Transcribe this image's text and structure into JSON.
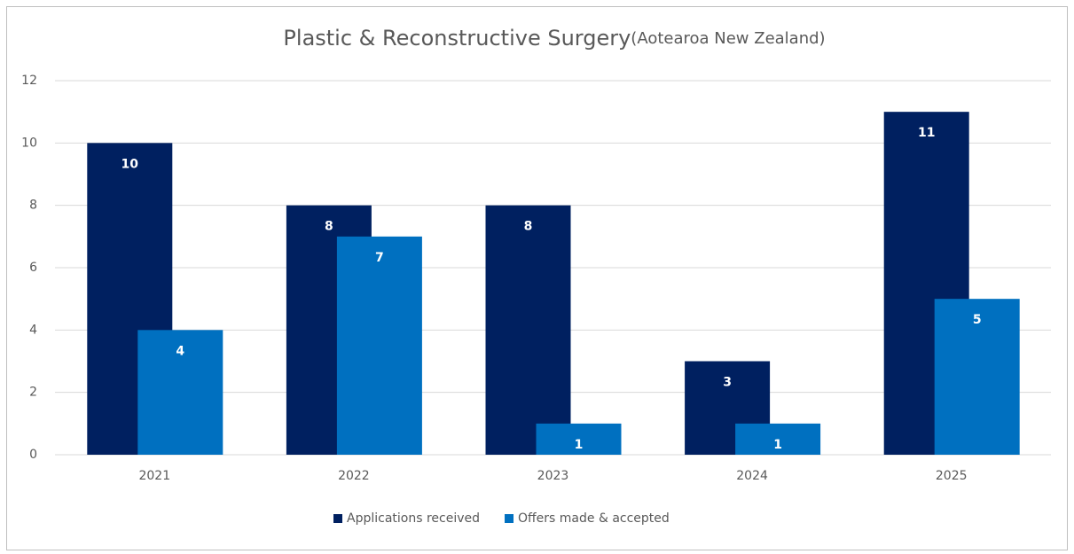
{
  "chart_data": {
    "type": "bar",
    "title": "Plastic & Reconstructive Surgery",
    "subtitle": "(Aotearoa New Zealand)",
    "categories": [
      "2021",
      "2022",
      "2023",
      "2024",
      "2025"
    ],
    "series": [
      {
        "name": "Applications received",
        "color": "#002060",
        "values": [
          10,
          8,
          8,
          3,
          11
        ]
      },
      {
        "name": "Offers made & accepted",
        "color": "#0070c0",
        "values": [
          4,
          7,
          1,
          1,
          5
        ]
      }
    ],
    "ylim": [
      0,
      12
    ],
    "yticks": [
      0,
      2,
      4,
      6,
      8,
      10,
      12
    ],
    "grid": true,
    "legend": "bottom",
    "data_labels": true
  }
}
